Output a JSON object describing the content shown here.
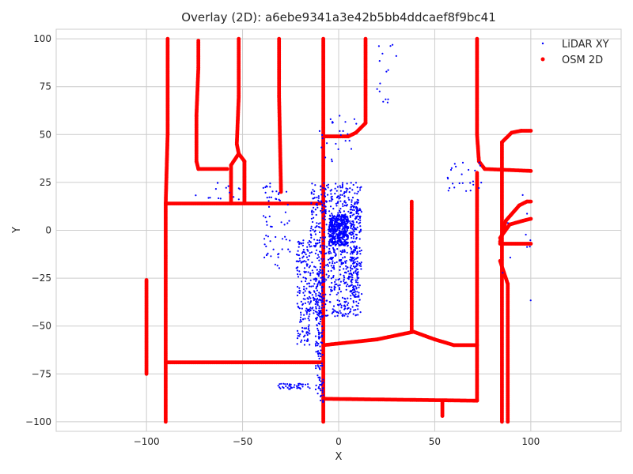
{
  "chart_data": {
    "type": "scatter",
    "title": "Overlay (2D): a6ebe9341a3e42b5bb4ddcaef8f9bc41",
    "xlabel": "X",
    "ylabel": "Y",
    "xlim": [
      -147,
      147
    ],
    "ylim": [
      -105,
      105
    ],
    "xticks": [
      -100,
      -50,
      0,
      50,
      100
    ],
    "yticks": [
      -100,
      -75,
      -50,
      -25,
      0,
      25,
      50,
      75,
      100
    ],
    "xtick_labels": [
      "−100",
      "−50",
      "0",
      "50",
      "100"
    ],
    "ytick_labels": [
      "−100",
      "−75",
      "−50",
      "−25",
      "0",
      "25",
      "50",
      "75",
      "100"
    ],
    "grid": true,
    "legend_position": "top-right",
    "colors": {
      "lidar": "#0000ff",
      "osm": "#ff0000",
      "grid": "#cccccc"
    },
    "series": [
      {
        "name": "LiDAR XY",
        "marker": "small-point",
        "color": "#0000ff",
        "clusters": [
          {
            "x": [
              -15,
              12
            ],
            "y": [
              -45,
              25
            ],
            "n": 700
          },
          {
            "x": [
              -5,
              5
            ],
            "y": [
              -8,
              8
            ],
            "n": 400
          },
          {
            "x": [
              -22,
              -15
            ],
            "y": [
              -60,
              -5
            ],
            "n": 160
          },
          {
            "x": [
              -12,
              -8
            ],
            "y": [
              -90,
              -20
            ],
            "n": 160
          },
          {
            "x": [
              6,
              10
            ],
            "y": [
              -35,
              15
            ],
            "n": 120
          },
          {
            "x": [
              -40,
              -25
            ],
            "y": [
              -20,
              25
            ],
            "n": 60
          },
          {
            "x": [
              -32,
              -15
            ],
            "y": [
              -83,
              -80
            ],
            "n": 40
          },
          {
            "x": [
              -10,
              10
            ],
            "y": [
              35,
              60
            ],
            "n": 25
          },
          {
            "x": [
              55,
              75
            ],
            "y": [
              20,
              36
            ],
            "n": 25
          },
          {
            "x": [
              -80,
              -50
            ],
            "y": [
              15,
              25
            ],
            "n": 15
          },
          {
            "x": [
              20,
              30
            ],
            "y": [
              65,
              97
            ],
            "n": 15
          },
          {
            "x": [
              85,
              100
            ],
            "y": [
              -40,
              20
            ],
            "n": 10
          }
        ]
      },
      {
        "name": "OSM 2D",
        "marker": "point",
        "color": "#ff0000",
        "polylines": [
          [
            [
              -90,
              -100
            ],
            [
              -90,
              14
            ],
            [
              -89,
              50
            ],
            [
              -89,
              100
            ]
          ],
          [
            [
              -90,
              14
            ],
            [
              -8,
              14
            ]
          ],
          [
            [
              -90,
              -69
            ],
            [
              -8,
              -69
            ]
          ],
          [
            [
              -100,
              -26
            ],
            [
              -100,
              -75
            ]
          ],
          [
            [
              -73,
              99
            ],
            [
              -73,
              85
            ],
            [
              -74,
              60
            ],
            [
              -74,
              36
            ],
            [
              -73,
              32
            ],
            [
              -58,
              32
            ]
          ],
          [
            [
              -52,
              100
            ],
            [
              -52,
              70
            ],
            [
              -53,
              45
            ],
            [
              -52,
              40
            ],
            [
              -49,
              36
            ],
            [
              -49,
              14
            ]
          ],
          [
            [
              -52,
              40
            ],
            [
              -56,
              34
            ],
            [
              -56,
              14
            ]
          ],
          [
            [
              -31,
              100
            ],
            [
              -31,
              70
            ],
            [
              -30,
              20
            ]
          ],
          [
            [
              -8,
              100
            ],
            [
              -8,
              -100
            ]
          ],
          [
            [
              -8,
              49
            ],
            [
              5,
              49
            ],
            [
              9,
              51
            ],
            [
              14,
              56
            ],
            [
              14,
              100
            ]
          ],
          [
            [
              -8,
              -60
            ],
            [
              20,
              -57
            ],
            [
              39,
              -53
            ],
            [
              50,
              -57
            ],
            [
              60,
              -60
            ],
            [
              72,
              -60
            ]
          ],
          [
            [
              38,
              15
            ],
            [
              38,
              -53
            ]
          ],
          [
            [
              -8,
              -88
            ],
            [
              72,
              -89
            ]
          ],
          [
            [
              54,
              -89
            ],
            [
              54,
              -97
            ]
          ],
          [
            [
              72,
              100
            ],
            [
              72,
              50
            ],
            [
              73,
              36
            ],
            [
              76,
              32
            ],
            [
              100,
              31
            ]
          ],
          [
            [
              72,
              30
            ],
            [
              72,
              -89
            ]
          ],
          [
            [
              85,
              -100
            ],
            [
              85,
              46
            ],
            [
              90,
              51
            ],
            [
              95,
              52
            ],
            [
              100,
              52
            ]
          ],
          [
            [
              84,
              -7
            ],
            [
              100,
              -7
            ]
          ],
          [
            [
              84,
              -6
            ],
            [
              87,
              5
            ],
            [
              94,
              13
            ],
            [
              98,
              15
            ],
            [
              100,
              15
            ]
          ],
          [
            [
              84,
              -4
            ],
            [
              89,
              3
            ],
            [
              96,
              5
            ],
            [
              100,
              6
            ]
          ],
          [
            [
              84,
              -16
            ],
            [
              88,
              -28
            ],
            [
              88,
              -100
            ]
          ]
        ]
      }
    ]
  }
}
